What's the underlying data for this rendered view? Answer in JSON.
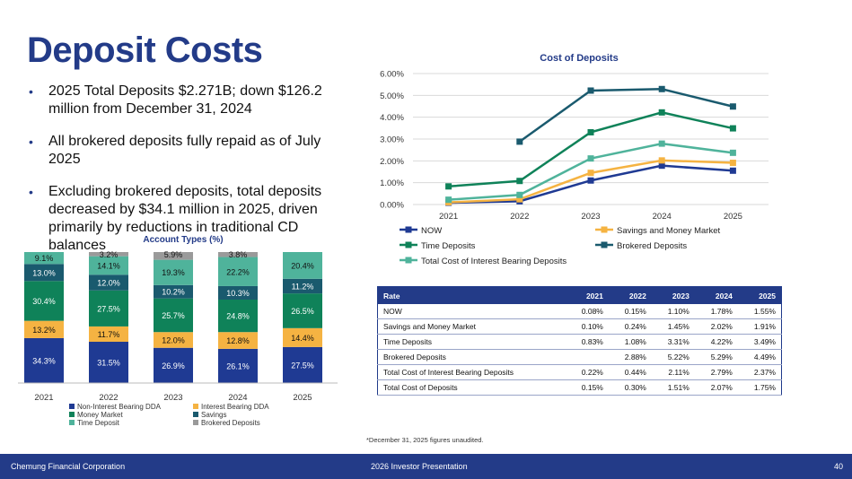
{
  "title": "Deposit Costs",
  "bullets": [
    "2025 Total Deposits $2.271B; down $126.2 million from December 31, 2024",
    "All brokered deposits fully repaid as of July 2025",
    "Excluding brokered deposits, total deposits decreased by $34.1 million in 2025, driven primarily by reductions in traditional CD balances"
  ],
  "bar_chart": {
    "title": "Account Types (%)",
    "categories": [
      "2021",
      "2022",
      "2023",
      "2024",
      "2025"
    ],
    "series": [
      {
        "name": "Non-Interest Bearing DDA",
        "color": "#1f3a93",
        "values": [
          34.3,
          31.5,
          26.9,
          26.1,
          27.5
        ]
      },
      {
        "name": "Interest Bearing DDA",
        "color": "#f5b342",
        "values": [
          13.2,
          11.7,
          12.0,
          12.8,
          14.4
        ]
      },
      {
        "name": "Money Market",
        "color": "#0f8259",
        "values": [
          30.4,
          27.5,
          25.7,
          24.8,
          26.5
        ]
      },
      {
        "name": "Savings",
        "color": "#1a5a6e",
        "values": [
          13.0,
          12.0,
          10.2,
          10.3,
          11.2
        ]
      },
      {
        "name": "Time Deposit",
        "color": "#4fb39b",
        "values": [
          9.1,
          14.1,
          19.3,
          22.2,
          20.4
        ]
      },
      {
        "name": "Brokered Deposits",
        "color": "#9a9a9a",
        "values": [
          0,
          3.2,
          5.9,
          3.8,
          0
        ]
      }
    ],
    "labels": [
      [
        "34.3%",
        "13.2%",
        "30.4%",
        "13.0%",
        "9.1%",
        ""
      ],
      [
        "31.5%",
        "11.7%",
        "27.5%",
        "12.0%",
        "14.1%",
        "3.2%"
      ],
      [
        "26.9%",
        "12.0%",
        "25.7%",
        "10.2%",
        "19.3%",
        "5.9%"
      ],
      [
        "26.1%",
        "12.8%",
        "24.8%",
        "10.3%",
        "22.2%",
        "3.8%"
      ],
      [
        "27.5%",
        "14.4%",
        "26.5%",
        "11.2%",
        "20.4%",
        ""
      ]
    ]
  },
  "chart_data": {
    "type": "line",
    "title": "Cost of Deposits",
    "x": [
      "2021",
      "2022",
      "2023",
      "2024",
      "2025"
    ],
    "ylim": [
      0,
      6
    ],
    "yticks": [
      "0.00%",
      "1.00%",
      "2.00%",
      "3.00%",
      "4.00%",
      "5.00%",
      "6.00%"
    ],
    "grid": true,
    "legend_position": "bottom",
    "series": [
      {
        "name": "NOW",
        "color": "#1f3a93",
        "values": [
          0.08,
          0.15,
          1.1,
          1.78,
          1.55
        ]
      },
      {
        "name": "Savings and Money Market",
        "color": "#f5b342",
        "values": [
          0.1,
          0.24,
          1.45,
          2.02,
          1.91
        ]
      },
      {
        "name": "Time Deposits",
        "color": "#0f8259",
        "values": [
          0.83,
          1.08,
          3.31,
          4.22,
          3.49
        ]
      },
      {
        "name": "Brokered Deposits",
        "color": "#1a5a6e",
        "values": [
          null,
          2.88,
          5.22,
          5.29,
          4.49
        ]
      },
      {
        "name": "Total Cost of Interest Bearing Deposits",
        "color": "#4fb39b",
        "values": [
          0.22,
          0.44,
          2.11,
          2.79,
          2.37
        ]
      }
    ]
  },
  "rate_table": {
    "headers": [
      "Rate",
      "2021",
      "2022",
      "2023",
      "2024",
      "2025"
    ],
    "rows": [
      [
        "NOW",
        "0.08%",
        "0.15%",
        "1.10%",
        "1.78%",
        "1.55%"
      ],
      [
        "Savings and Money Market",
        "0.10%",
        "0.24%",
        "1.45%",
        "2.02%",
        "1.91%"
      ],
      [
        "Time Deposits",
        "0.83%",
        "1.08%",
        "3.31%",
        "4.22%",
        "3.49%"
      ],
      [
        "Brokered Deposits",
        "",
        "2.88%",
        "5.22%",
        "5.29%",
        "4.49%"
      ],
      [
        "Total Cost of Interest Bearing Deposits",
        "0.22%",
        "0.44%",
        "2.11%",
        "2.79%",
        "2.37%"
      ],
      [
        "Total Cost of Deposits",
        "0.15%",
        "0.30%",
        "1.51%",
        "2.07%",
        "1.75%"
      ]
    ]
  },
  "footnote": "*December 31, 2025 figures unaudited.",
  "footer": {
    "company": "Chemung Financial Corporation",
    "presentation": "2026 Investor Presentation",
    "page": "40"
  }
}
